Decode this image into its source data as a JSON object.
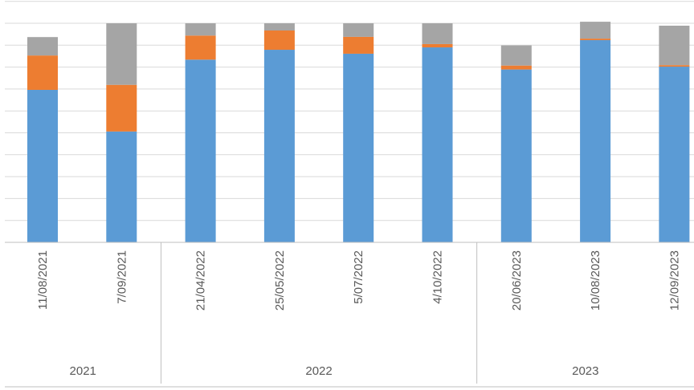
{
  "chart_data": {
    "type": "bar",
    "stacked": true,
    "categories": [
      "11/08/2021",
      "7/09/2021",
      "21/04/2022",
      "25/05/2022",
      "5/07/2022",
      "4/10/2022",
      "20/06/2023",
      "10/08/2023",
      "12/09/2023"
    ],
    "groups": [
      {
        "label": "2021",
        "count": 2
      },
      {
        "label": "2022",
        "count": 4
      },
      {
        "label": "2023",
        "count": 3
      }
    ],
    "series": [
      {
        "color": "#5b9bd5",
        "values": [
          69.6,
          50.6,
          83.4,
          87.9,
          86.1,
          89.0,
          78.9,
          92.3,
          80.2
        ]
      },
      {
        "color": "#ed7d31",
        "values": [
          15.7,
          21.3,
          11.0,
          8.8,
          7.7,
          1.5,
          1.8,
          0.7,
          0.7
        ]
      },
      {
        "color": "#a5a5a5",
        "values": [
          8.4,
          28.1,
          5.6,
          3.3,
          6.2,
          9.5,
          9.2,
          7.7,
          18.0
        ]
      }
    ],
    "ylim": [
      0,
      110
    ],
    "grid": true,
    "legend": "none",
    "title": "",
    "xlabel": "",
    "ylabel": ""
  }
}
